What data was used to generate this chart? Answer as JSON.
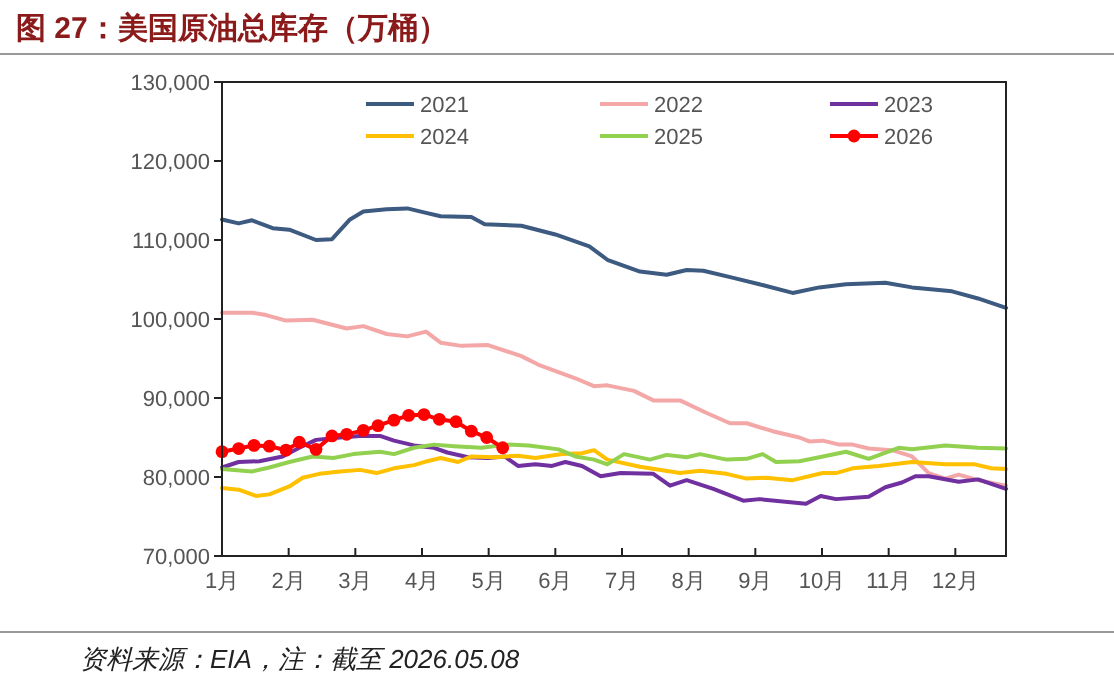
{
  "chart_data": {
    "type": "line",
    "title": "图 27：美国原油总库存（万桶）",
    "annotations": [
      "资料来源：EIA，注：截至 2026.05.08"
    ],
    "xlim": [
      1,
      12.76
    ],
    "xticks": [
      {
        "value": 1,
        "label": "1月"
      },
      {
        "value": 2,
        "label": "2月"
      },
      {
        "value": 3,
        "label": "3月"
      },
      {
        "value": 4,
        "label": "4月"
      },
      {
        "value": 5,
        "label": "5月"
      },
      {
        "value": 6,
        "label": "6月"
      },
      {
        "value": 7,
        "label": "7月"
      },
      {
        "value": 8,
        "label": "8月"
      },
      {
        "value": 9,
        "label": "9月"
      },
      {
        "value": 10,
        "label": "10月"
      },
      {
        "value": 11,
        "label": "11月"
      },
      {
        "value": 12,
        "label": "12月"
      }
    ],
    "ylim": [
      70000,
      130000
    ],
    "yticks": [
      {
        "value": 70000,
        "label": "70,000"
      },
      {
        "value": 80000,
        "label": "80,000"
      },
      {
        "value": 90000,
        "label": "90,000"
      },
      {
        "value": 100000,
        "label": "100,000"
      },
      {
        "value": 110000,
        "label": "110,000"
      },
      {
        "value": 120000,
        "label": "120,000"
      },
      {
        "value": 130000,
        "label": "130,000"
      }
    ],
    "grid": false,
    "legend": "top",
    "series": [
      {
        "name": "2021",
        "color": "#3d5a80",
        "x": [
          1.0,
          1.25,
          1.45,
          1.76,
          2.01,
          2.41,
          2.65,
          2.92,
          3.12,
          3.47,
          3.78,
          4.03,
          4.28,
          4.74,
          4.94,
          5.49,
          6.0,
          6.51,
          6.78,
          7.27,
          7.67,
          7.97,
          8.22,
          8.67,
          9.06,
          9.56,
          9.96,
          10.36,
          10.95,
          11.35,
          11.95,
          12.34,
          12.76
        ],
        "values": [
          112600,
          112100,
          112500,
          111500,
          111300,
          110000,
          110100,
          112600,
          113600,
          113900,
          114000,
          113500,
          113000,
          112900,
          112000,
          111800,
          110700,
          109200,
          107500,
          106000,
          105600,
          106200,
          106100,
          105200,
          104400,
          103300,
          104000,
          104400,
          104600,
          104000,
          103500,
          102600,
          101400
        ]
      },
      {
        "name": "2022",
        "color": "#f4a7a7",
        "x": [
          1.0,
          1.45,
          1.66,
          1.96,
          2.36,
          2.87,
          3.12,
          3.47,
          3.78,
          4.06,
          4.28,
          4.59,
          4.99,
          5.49,
          5.75,
          6.3,
          6.58,
          6.78,
          7.18,
          7.47,
          7.87,
          8.27,
          8.62,
          8.87,
          9.26,
          9.66,
          9.81,
          10.01,
          10.26,
          10.46,
          10.7,
          11.05,
          11.35,
          11.6,
          11.85,
          12.05,
          12.34,
          12.76
        ],
        "values": [
          100800,
          100800,
          100500,
          99800,
          99900,
          98800,
          99100,
          98100,
          97800,
          98400,
          97000,
          96600,
          96700,
          95300,
          94200,
          92500,
          91500,
          91600,
          90900,
          89700,
          89700,
          88100,
          86800,
          86800,
          85800,
          85000,
          84500,
          84600,
          84100,
          84100,
          83600,
          83400,
          82600,
          80500,
          79800,
          80300,
          79600,
          78900
        ]
      },
      {
        "name": "2023",
        "color": "#7030a0",
        "x": [
          1.0,
          1.25,
          1.56,
          1.91,
          2.16,
          2.41,
          2.77,
          3.07,
          3.37,
          3.58,
          3.88,
          4.18,
          4.38,
          4.69,
          4.99,
          5.24,
          5.44,
          5.7,
          5.95,
          6.15,
          6.4,
          6.68,
          6.98,
          7.47,
          7.72,
          7.97,
          8.37,
          8.82,
          9.06,
          9.76,
          9.98,
          10.21,
          10.7,
          10.95,
          11.2,
          11.4,
          11.6,
          12.05,
          12.34,
          12.76
        ],
        "values": [
          81200,
          81900,
          82000,
          82600,
          83700,
          84700,
          85000,
          85200,
          85200,
          84600,
          84000,
          83700,
          83100,
          82500,
          82400,
          82600,
          81400,
          81600,
          81400,
          81900,
          81400,
          80100,
          80500,
          80400,
          78900,
          79600,
          78500,
          77000,
          77200,
          76600,
          77600,
          77200,
          77500,
          78700,
          79300,
          80100,
          80100,
          79400,
          79700,
          78500
        ]
      },
      {
        "name": "2024",
        "color": "#ffc000",
        "x": [
          1.0,
          1.25,
          1.51,
          1.71,
          2.01,
          2.21,
          2.46,
          2.77,
          3.07,
          3.32,
          3.58,
          3.88,
          4.08,
          4.28,
          4.54,
          4.74,
          5.09,
          5.44,
          5.7,
          6.1,
          6.4,
          6.58,
          6.78,
          7.27,
          7.87,
          8.17,
          8.57,
          8.87,
          9.16,
          9.56,
          10.01,
          10.21,
          10.46,
          10.85,
          11.35,
          11.85,
          12.29,
          12.54,
          12.76
        ],
        "values": [
          78600,
          78400,
          77600,
          77800,
          78800,
          79900,
          80400,
          80700,
          80900,
          80500,
          81100,
          81500,
          82000,
          82400,
          81900,
          82600,
          82500,
          82700,
          82400,
          82900,
          83000,
          83400,
          82200,
          81300,
          80500,
          80800,
          80400,
          79800,
          79900,
          79600,
          80500,
          80500,
          81100,
          81400,
          81900,
          81600,
          81600,
          81100,
          81000
        ]
      },
      {
        "name": "2025",
        "color": "#92d050",
        "x": [
          1.0,
          1.45,
          1.71,
          2.01,
          2.36,
          2.67,
          2.97,
          3.37,
          3.58,
          3.88,
          4.18,
          4.48,
          4.89,
          5.29,
          5.6,
          6.05,
          6.3,
          6.58,
          6.78,
          7.03,
          7.42,
          7.67,
          7.97,
          8.17,
          8.57,
          8.87,
          9.11,
          9.31,
          9.66,
          9.96,
          10.36,
          10.7,
          11.15,
          11.35,
          11.85,
          12.34,
          12.76
        ],
        "values": [
          81000,
          80700,
          81200,
          81900,
          82600,
          82400,
          82900,
          83200,
          82900,
          83700,
          84100,
          83900,
          83700,
          84100,
          84000,
          83500,
          82600,
          82200,
          81600,
          82900,
          82200,
          82800,
          82500,
          82900,
          82200,
          82300,
          82900,
          81900,
          82000,
          82500,
          83200,
          82300,
          83700,
          83500,
          84000,
          83700,
          83600
        ]
      },
      {
        "name": "2026",
        "color": "#ff0000",
        "marker": "circle",
        "x": [
          1.0,
          1.25,
          1.48,
          1.71,
          1.96,
          2.16,
          2.41,
          2.65,
          2.87,
          3.12,
          3.34,
          3.58,
          3.8,
          4.03,
          4.26,
          4.51,
          4.74,
          4.97,
          5.21
        ],
        "values": [
          83200,
          83600,
          84000,
          83900,
          83400,
          84400,
          83500,
          85200,
          85400,
          85900,
          86500,
          87200,
          87800,
          87900,
          87300,
          87000,
          85800,
          85000,
          83700
        ]
      }
    ]
  }
}
